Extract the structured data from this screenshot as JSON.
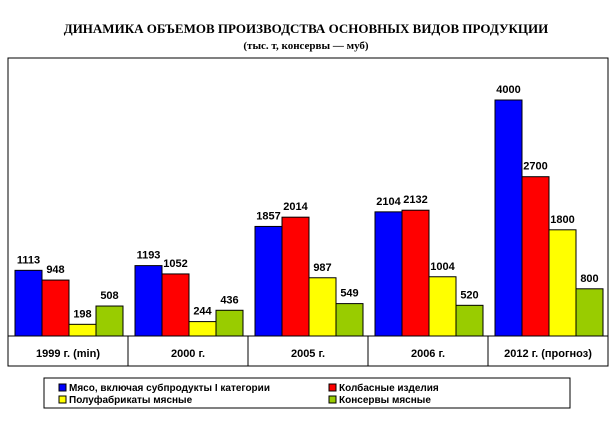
{
  "chart_data": {
    "type": "bar",
    "title": "ДИНАМИКА ОБЪЕМОВ ПРОИЗВОДСТВА ОСНОВНЫХ ВИДОВ ПРОДУКЦИИ",
    "subtitle": "(тыс. т, консервы — муб)",
    "xlabel": "",
    "ylabel": "",
    "ylim": [
      0,
      4000
    ],
    "grid": false,
    "legend_position": "bottom",
    "categories": [
      "1999 г. (min)",
      "2000 г.",
      "2005 г.",
      "2006 г.",
      "2012 г. (прогноз)"
    ],
    "series": [
      {
        "name": "Мясо, включая субпродукты I категории",
        "color": "#0000ff",
        "values": [
          1113,
          1193,
          1857,
          2104,
          4000
        ]
      },
      {
        "name": "Колбасные изделия",
        "color": "#ff0000",
        "values": [
          948,
          1052,
          2014,
          2132,
          2700
        ]
      },
      {
        "name": "Полуфабрикаты мясные",
        "color": "#ffff00",
        "values": [
          198,
          244,
          987,
          1004,
          1800
        ]
      },
      {
        "name": "Консервы мясные",
        "color": "#99cc00",
        "values": [
          508,
          436,
          549,
          520,
          800
        ]
      }
    ]
  }
}
